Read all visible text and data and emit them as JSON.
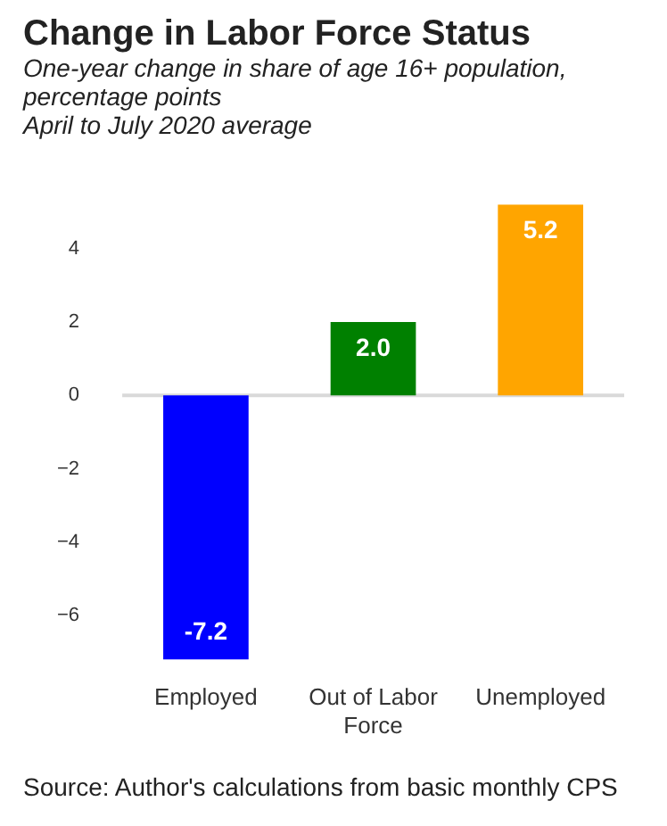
{
  "chart_data": {
    "type": "bar",
    "title": "Change in Labor Force Status",
    "subtitle": "One-year change in share of age 16+ population, percentage points\nApril to July 2020 average",
    "categories": [
      "Employed",
      "Out of Labor\nForce",
      "Unemployed"
    ],
    "values": [
      -7.2,
      2.0,
      5.2
    ],
    "colors": [
      "#0000ff",
      "#008000",
      "#ffa500"
    ],
    "value_labels": [
      "-7.2",
      "2.0",
      "5.2"
    ],
    "ylim": [
      -7.2,
      5.2
    ],
    "yticks": [
      {
        "value": -6,
        "label": "−6"
      },
      {
        "value": -4,
        "label": "−4"
      },
      {
        "value": -2,
        "label": "−2"
      },
      0,
      2,
      4
    ],
    "ref_lines": [
      {
        "axis": "y",
        "value": 0,
        "color": "#d9d9d9"
      }
    ],
    "grid": false,
    "legend": false,
    "annotations": [
      "Source: Author's calculations from basic monthly CPS"
    ]
  }
}
